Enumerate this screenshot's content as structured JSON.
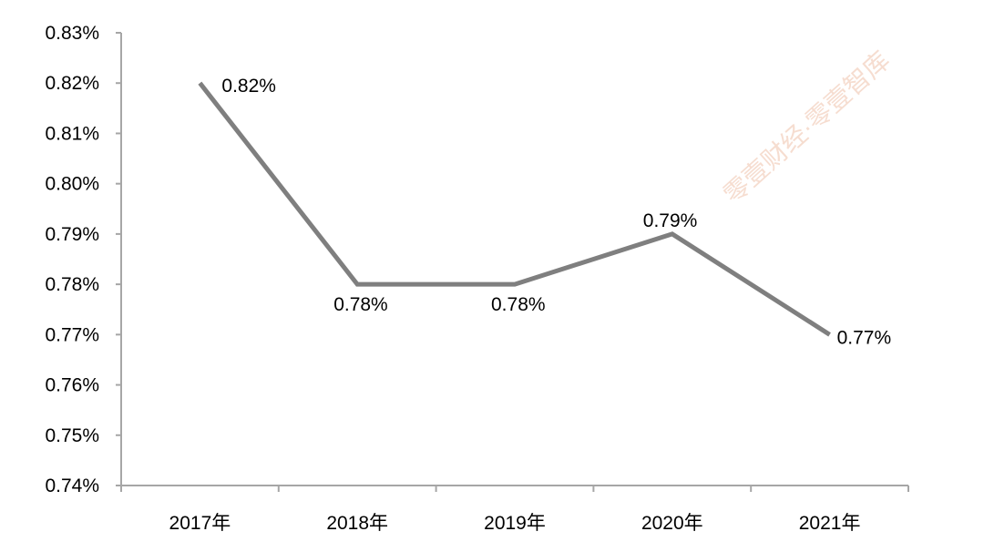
{
  "watermark": "零壹财经·零壹智库",
  "chart_data": {
    "type": "line",
    "categories": [
      "2017年",
      "2018年",
      "2019年",
      "2020年",
      "2021年"
    ],
    "series": [
      {
        "values": [
          0.82,
          0.78,
          0.78,
          0.79,
          0.77
        ],
        "labels": [
          "0.82%",
          "0.78%",
          "0.78%",
          "0.79%",
          "0.77%"
        ],
        "color": "#7f7f7f"
      }
    ],
    "ylim": [
      0.74,
      0.83
    ],
    "yticks": [
      0.74,
      0.75,
      0.76,
      0.77,
      0.78,
      0.79,
      0.8,
      0.81,
      0.82,
      0.83
    ],
    "ytick_labels": [
      "0.74%",
      "0.75%",
      "0.76%",
      "0.77%",
      "0.78%",
      "0.79%",
      "0.80%",
      "0.81%",
      "0.82%",
      "0.83%"
    ],
    "title": "",
    "xlabel": "",
    "ylabel": "",
    "grid": false,
    "legend": "none",
    "axis_color": "#a6a6a6"
  }
}
